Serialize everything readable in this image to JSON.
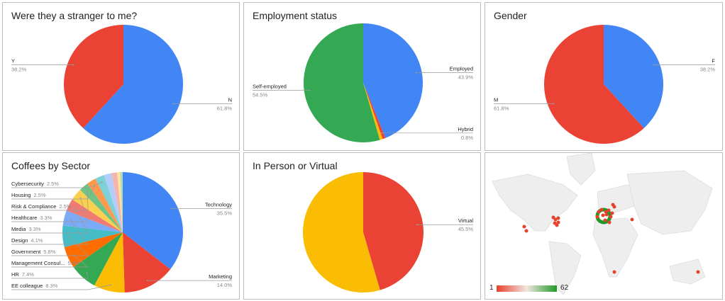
{
  "colors": {
    "blue": "#4285f4",
    "red": "#ea4335",
    "yellow": "#fbbc04",
    "green": "#34a853"
  },
  "chart_data": [
    {
      "id": "stranger",
      "type": "pie",
      "title": "Were they a stranger to me?",
      "slices": [
        {
          "label": "N",
          "value": 61.8,
          "pct": "61.8%",
          "color": "#4285f4",
          "side": "right"
        },
        {
          "label": "Y",
          "value": 38.2,
          "pct": "38.2%",
          "color": "#ea4335",
          "side": "left"
        }
      ]
    },
    {
      "id": "employment",
      "type": "pie",
      "title": "Employment status",
      "slices": [
        {
          "label": "Employed",
          "value": 43.9,
          "pct": "43.9%",
          "color": "#4285f4",
          "side": "right"
        },
        {
          "label": "Hybrid",
          "value": 0.8,
          "pct": "0.8%",
          "color": "#ea4335",
          "side": "right"
        },
        {
          "label": "",
          "value": 0.8,
          "pct": "",
          "color": "#fbbc04"
        },
        {
          "label": "Self-employed",
          "value": 54.5,
          "pct": "54.5%",
          "color": "#34a853",
          "side": "left"
        }
      ]
    },
    {
      "id": "gender",
      "type": "pie",
      "title": "Gender",
      "slices": [
        {
          "label": "F",
          "value": 38.2,
          "pct": "38.2%",
          "color": "#4285f4",
          "side": "right"
        },
        {
          "label": "M",
          "value": 61.8,
          "pct": "61.8%",
          "color": "#ea4335",
          "side": "left"
        }
      ]
    },
    {
      "id": "sector",
      "type": "pie",
      "title": "Coffees by Sector",
      "slices": [
        {
          "label": "Technology",
          "value": 35.5,
          "pct": "35.5%",
          "color": "#4285f4",
          "side": "right"
        },
        {
          "label": "Marketing",
          "value": 14.0,
          "pct": "14.0%",
          "color": "#ea4335",
          "side": "right"
        },
        {
          "label": "EE colleague",
          "value": 8.3,
          "pct": "8.3%",
          "color": "#fbbc04",
          "side": "left"
        },
        {
          "label": "HR",
          "value": 7.4,
          "pct": "7.4%",
          "color": "#34a853",
          "side": "left"
        },
        {
          "label": "Management Consul...",
          "value": 5.8,
          "pct": "5.8%",
          "color": "#ff6d01",
          "side": "left"
        },
        {
          "label": "Government",
          "value": 5.8,
          "pct": "5.8%",
          "color": "#46bdc6",
          "side": "left"
        },
        {
          "label": "Design",
          "value": 4.1,
          "pct": "4.1%",
          "color": "#7baaf7",
          "side": "left"
        },
        {
          "label": "Media",
          "value": 3.3,
          "pct": "3.3%",
          "color": "#f07b72",
          "side": "left"
        },
        {
          "label": "Healthcare",
          "value": 3.3,
          "pct": "3.3%",
          "color": "#fcd04f",
          "side": "left"
        },
        {
          "label": "Risk & Compliance",
          "value": 2.5,
          "pct": "2.5%",
          "color": "#71c287",
          "side": "left"
        },
        {
          "label": "Housing",
          "value": 2.5,
          "pct": "2.5%",
          "color": "#ff994d",
          "side": "left"
        },
        {
          "label": "Cybersecurity",
          "value": 2.5,
          "pct": "2.5%",
          "color": "#7ed1d7",
          "side": "left"
        },
        {
          "label": "",
          "value": 2.0,
          "pct": "",
          "color": "#b3cefb"
        },
        {
          "label": "",
          "value": 1.5,
          "pct": "",
          "color": "#f7b4ae"
        },
        {
          "label": "",
          "value": 0.8,
          "pct": "",
          "color": "#fde49b"
        },
        {
          "label": "",
          "value": 0.7,
          "pct": "",
          "color": "#aedcba"
        }
      ]
    },
    {
      "id": "inperson",
      "type": "pie",
      "title": "In Person or Virtual",
      "slices": [
        {
          "label": "Virtual",
          "value": 45.5,
          "pct": "45.5%",
          "color": "#ea4335",
          "side": "right"
        },
        {
          "label": "",
          "value": 54.5,
          "pct": "",
          "color": "#fbbc04"
        }
      ]
    }
  ],
  "map": {
    "legend_min": "1",
    "legend_max": "62",
    "min_color": "#e5412d",
    "max_color": "#1f9a2a"
  }
}
